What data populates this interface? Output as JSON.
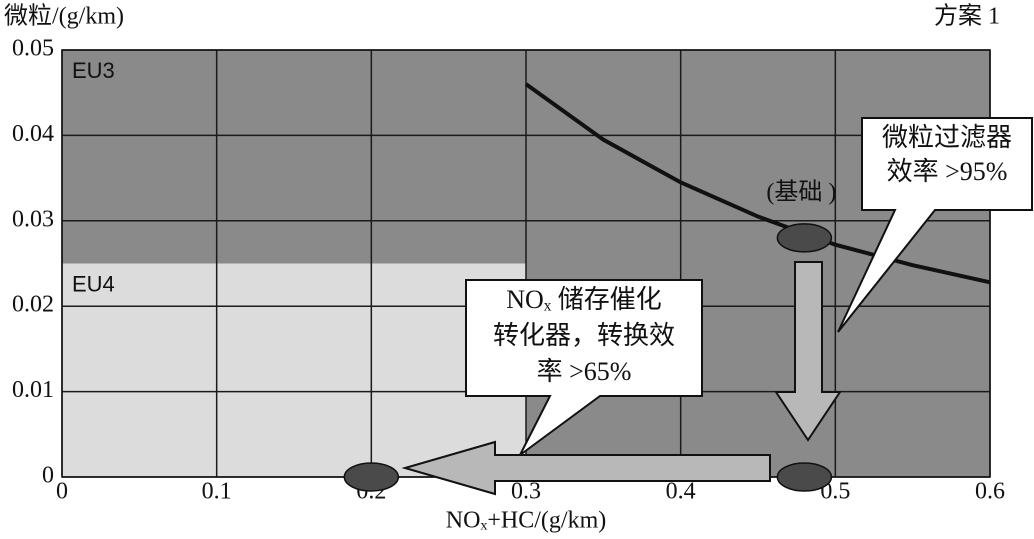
{
  "chart_data": {
    "type": "line",
    "y_label": "微粒/(g/km)",
    "x_label": "NOₓ+HC/(g/km)",
    "corner_label": "方案 1",
    "xlim": [
      0,
      0.6
    ],
    "ylim": [
      0,
      0.05
    ],
    "xticks": [
      0,
      0.1,
      0.2,
      0.3,
      0.4,
      0.5,
      0.6
    ],
    "yticks": [
      0,
      0.01,
      0.02,
      0.03,
      0.04,
      0.05
    ],
    "grid": true,
    "regions": [
      {
        "label": "EU3",
        "xlim": [
          0,
          0.6
        ],
        "ylim": [
          0,
          0.05
        ],
        "color": "#8a8a8a"
      },
      {
        "label": "EU4",
        "xlim": [
          0,
          0.3
        ],
        "ylim": [
          0,
          0.025
        ],
        "color": "#dcdcdc"
      }
    ],
    "series": [
      {
        "color": "#111111",
        "x": [
          0.3,
          0.35,
          0.4,
          0.45,
          0.5,
          0.55,
          0.6
        ],
        "values": [
          0.046,
          0.0395,
          0.0345,
          0.0305,
          0.0272,
          0.0248,
          0.0228
        ]
      }
    ],
    "points": [
      {
        "label": "(基础 )",
        "x": 0.48,
        "y": 0.028
      },
      {
        "x": 0.48,
        "y": 0
      },
      {
        "x": 0.2,
        "y": 0
      }
    ],
    "callouts": [
      {
        "lines": [
          "微粒过滤器",
          "效率 >95%"
        ]
      },
      {
        "lines": [
          "NOₓ 储存催化",
          "转化器，转换效",
          "率 >65%"
        ]
      }
    ]
  }
}
